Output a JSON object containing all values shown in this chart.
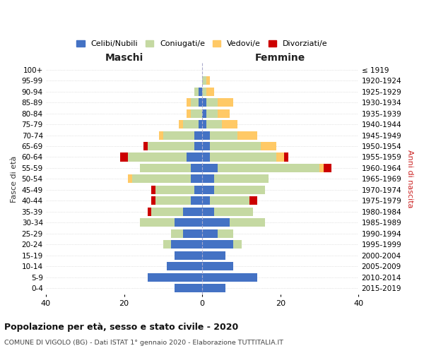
{
  "age_groups": [
    "100+",
    "95-99",
    "90-94",
    "85-89",
    "80-84",
    "75-79",
    "70-74",
    "65-69",
    "60-64",
    "55-59",
    "50-54",
    "45-49",
    "40-44",
    "35-39",
    "30-34",
    "25-29",
    "20-24",
    "15-19",
    "10-14",
    "5-9",
    "0-4"
  ],
  "birth_years": [
    "≤ 1919",
    "1920-1924",
    "1925-1929",
    "1930-1934",
    "1935-1939",
    "1940-1944",
    "1945-1949",
    "1950-1954",
    "1955-1959",
    "1960-1964",
    "1965-1969",
    "1970-1974",
    "1975-1979",
    "1980-1984",
    "1985-1989",
    "1990-1994",
    "1995-1999",
    "2000-2004",
    "2005-2009",
    "2010-2014",
    "2015-2019"
  ],
  "male_celibe": [
    0,
    0,
    1,
    1,
    0,
    1,
    2,
    2,
    4,
    3,
    3,
    2,
    3,
    5,
    7,
    5,
    8,
    7,
    9,
    14,
    7
  ],
  "male_coniugato": [
    0,
    0,
    1,
    2,
    3,
    4,
    8,
    12,
    15,
    13,
    15,
    10,
    9,
    8,
    9,
    3,
    2,
    0,
    0,
    0,
    0
  ],
  "male_vedovo": [
    0,
    0,
    0,
    1,
    1,
    1,
    1,
    0,
    0,
    0,
    1,
    0,
    0,
    0,
    0,
    0,
    0,
    0,
    0,
    0,
    0
  ],
  "male_divorziato": [
    0,
    0,
    0,
    0,
    0,
    0,
    0,
    1,
    2,
    0,
    0,
    1,
    1,
    1,
    0,
    0,
    0,
    0,
    0,
    0,
    0
  ],
  "female_celibe": [
    0,
    0,
    0,
    1,
    1,
    1,
    2,
    2,
    2,
    4,
    3,
    3,
    2,
    3,
    7,
    4,
    8,
    6,
    8,
    14,
    6
  ],
  "female_coniugato": [
    0,
    1,
    1,
    3,
    3,
    4,
    7,
    13,
    17,
    26,
    14,
    13,
    10,
    10,
    9,
    4,
    2,
    0,
    0,
    0,
    0
  ],
  "female_vedovo": [
    0,
    1,
    2,
    4,
    3,
    4,
    5,
    4,
    2,
    1,
    0,
    0,
    0,
    0,
    0,
    0,
    0,
    0,
    0,
    0,
    0
  ],
  "female_divorziato": [
    0,
    0,
    0,
    0,
    0,
    0,
    0,
    0,
    1,
    2,
    0,
    0,
    2,
    0,
    0,
    0,
    0,
    0,
    0,
    0,
    0
  ],
  "colors": {
    "celibe": "#4472c4",
    "coniugato": "#c5d9a2",
    "vedovo": "#ffc966",
    "divorziato": "#cc0000"
  },
  "legend_labels": [
    "Celibi/Nubili",
    "Coniugati/e",
    "Vedovi/e",
    "Divorziati/e"
  ],
  "title": "Popolazione per età, sesso e stato civile - 2020",
  "subtitle": "COMUNE DI VIGOLO (BG) - Dati ISTAT 1° gennaio 2020 - Elaborazione TUTTITALIA.IT",
  "xlabel_left": "Maschi",
  "xlabel_right": "Femmine",
  "ylabel_left": "Fasce di età",
  "ylabel_right": "Anni di nascita",
  "xlim": 40,
  "background_color": "#ffffff",
  "grid_color": "#cccccc"
}
